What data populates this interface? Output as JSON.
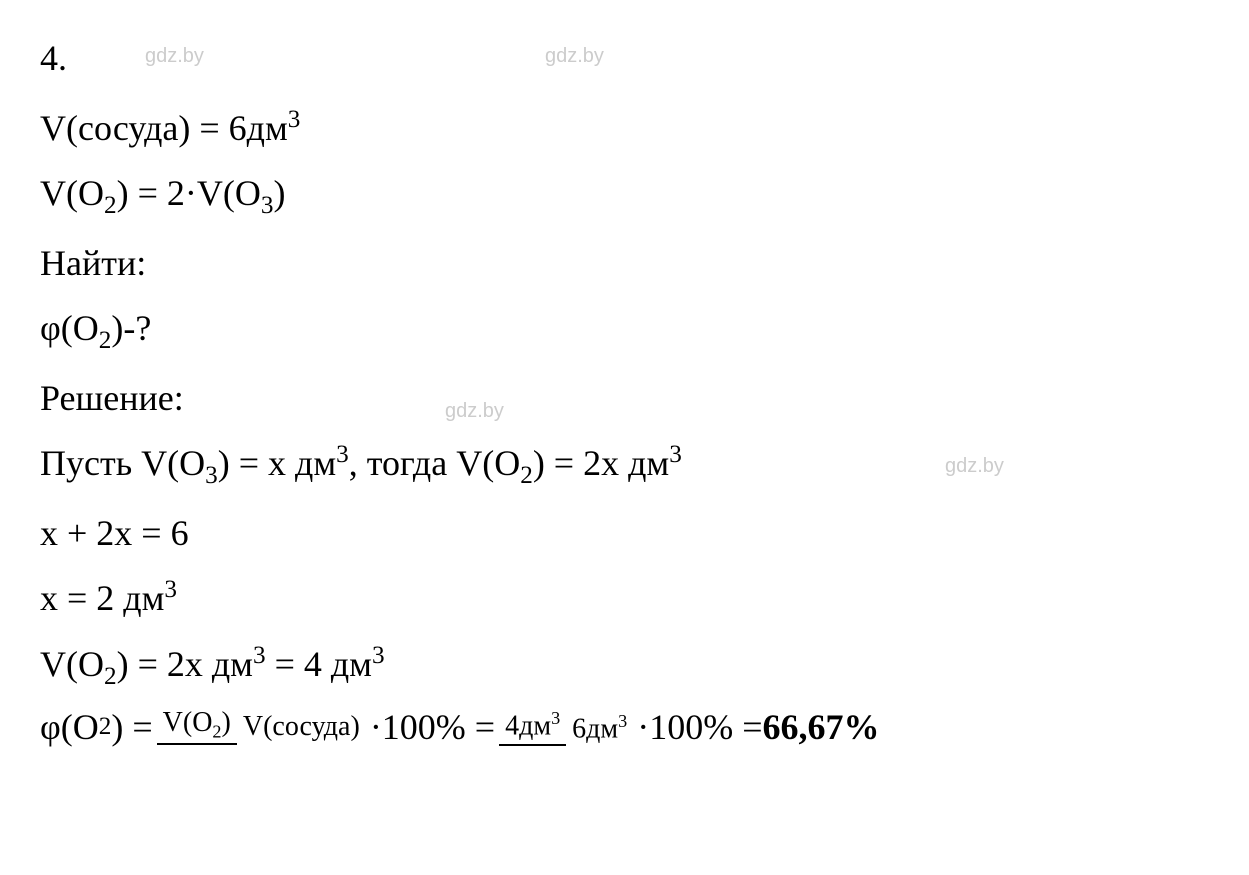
{
  "watermarks": {
    "wm1": "gdz.by",
    "wm2": "gdz.by",
    "wm3": "gdz.by",
    "wm4": "gdz.by"
  },
  "lines": {
    "problem_number": "4.",
    "given1_pre": "V(сосуда) = 6дм",
    "given1_sup": "3",
    "given2_pre": "V(O",
    "given2_sub1": "2",
    "given2_mid": ") = 2·V(O",
    "given2_sub2": "3",
    "given2_end": ")",
    "find_label": "Найти:",
    "find_expr_pre": "φ(O",
    "find_expr_sub": "2",
    "find_expr_end": ")-?",
    "solution_label": "Решение:",
    "sol1_pre": "Пусть V(O",
    "sol1_sub1": "3",
    "sol1_mid1": ") = х дм",
    "sol1_sup1": "3",
    "sol1_mid2": ", тогда V(O",
    "sol1_sub2": "2",
    "sol1_mid3": ") = 2х дм",
    "sol1_sup2": "3",
    "sol2": "х + 2х = 6",
    "sol3_pre": "х = 2 дм",
    "sol3_sup": "3",
    "sol4_pre": "V(O",
    "sol4_sub": "2",
    "sol4_mid1": ") = 2х дм",
    "sol4_sup1": "3",
    "sol4_mid2": " = 4 дм",
    "sol4_sup2": "3",
    "final_pre": "φ(O",
    "final_sub": "2",
    "final_mid1": ") = ",
    "frac1_num_pre": "V(O",
    "frac1_num_sub": "2",
    "frac1_num_end": ")",
    "frac1_den": "V(сосуда)",
    "final_mid2": "·100% = ",
    "frac2_num_pre": "4дм",
    "frac2_num_sup": "3",
    "frac2_den_pre": "6дм",
    "frac2_den_sup": "3",
    "final_mid3": "·100% = ",
    "final_answer": "66,67%"
  },
  "styling": {
    "background_color": "#ffffff",
    "text_color": "#000000",
    "watermark_color": "#cccccc",
    "main_fontsize": 36,
    "watermark_fontsize": 20,
    "fraction_fontsize": 28,
    "font_family": "Times New Roman"
  }
}
